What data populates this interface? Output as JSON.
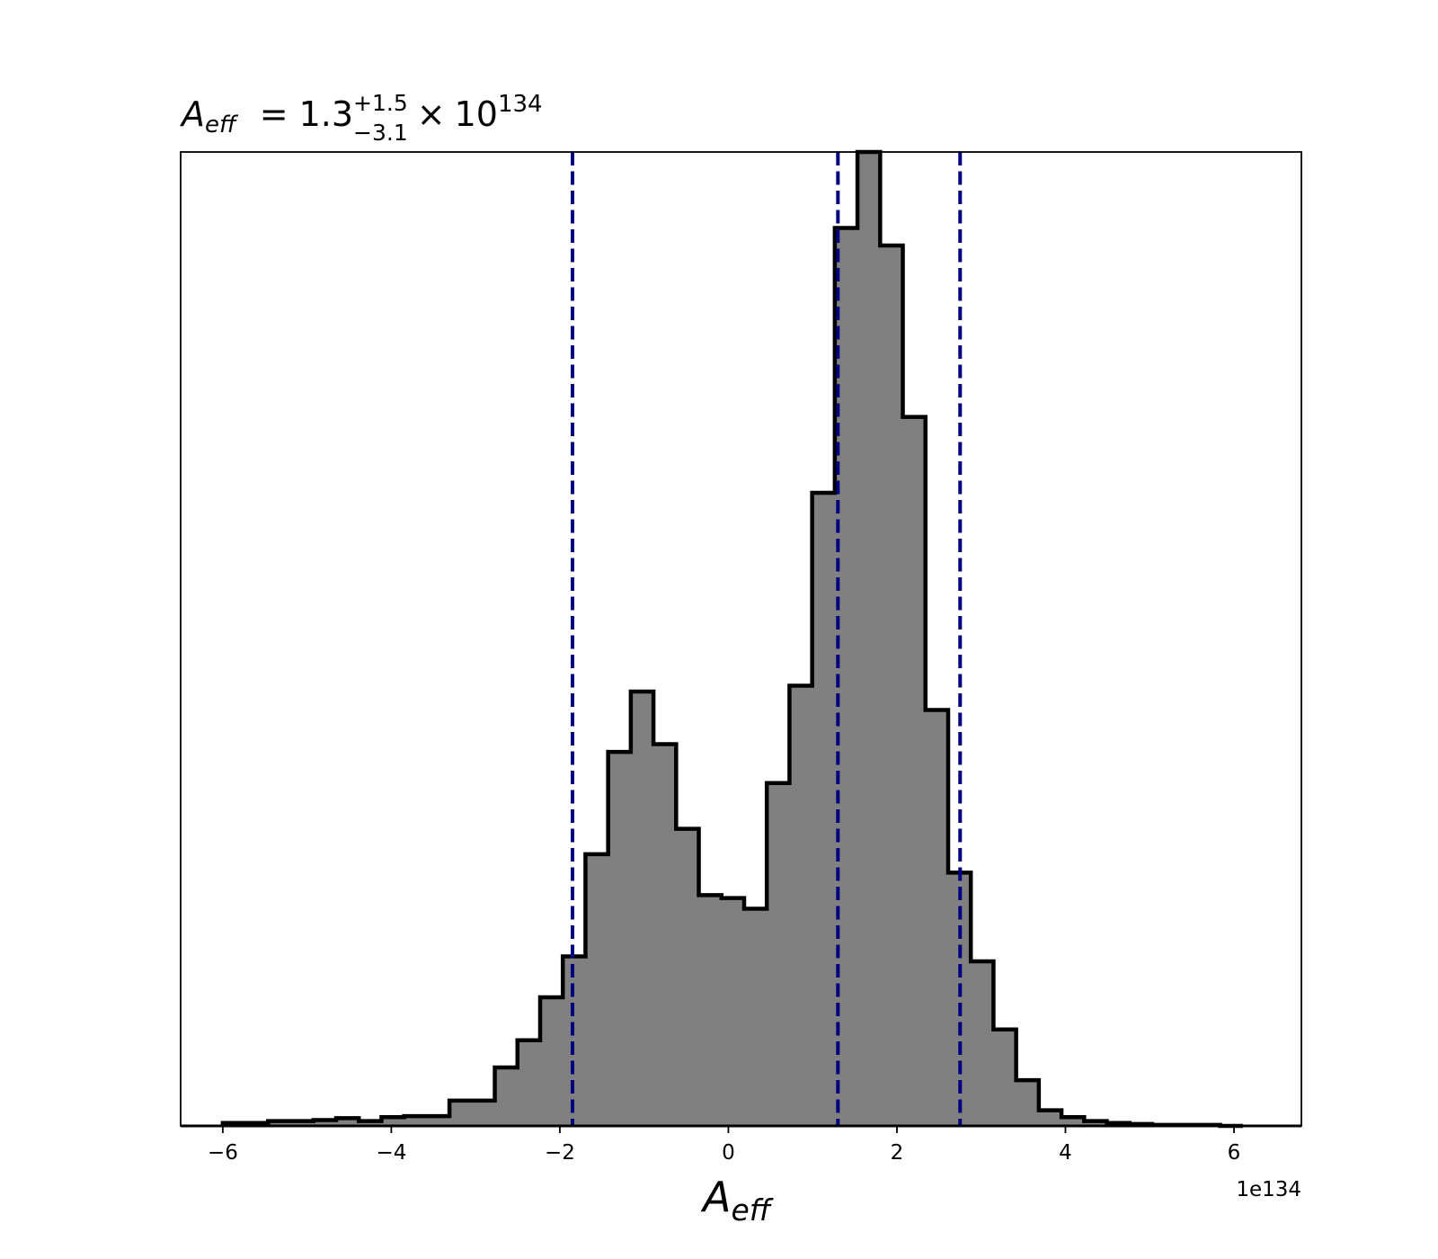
{
  "chart_data": {
    "type": "bar",
    "title": {
      "symbol": "A",
      "subscript": "eff",
      "equals": "=",
      "value": "1.3",
      "upper_error": "+1.5",
      "lower_error": "−3.1",
      "times": "×",
      "base": "10",
      "exponent": "134"
    },
    "xlabel": {
      "symbol": "A",
      "subscript": "eff"
    },
    "ylabel": "",
    "x_offset_label": "1e134",
    "xlim": [
      -6.5,
      6.8
    ],
    "ylim": [
      0,
      1.0
    ],
    "x_ticks": [
      -6,
      -4,
      -2,
      0,
      2,
      4,
      6
    ],
    "x_tick_labels": [
      "−6",
      "−4",
      "−2",
      "0",
      "2",
      "4",
      "6"
    ],
    "show_y_ticks": false,
    "grid": false,
    "bin_width": 0.269,
    "bin_lefts": [
      -6.0,
      -5.731,
      -5.462,
      -5.193,
      -4.924,
      -4.655,
      -4.386,
      -4.117,
      -3.848,
      -3.579,
      -3.31,
      -3.041,
      -2.772,
      -2.503,
      -2.234,
      -1.965,
      -1.696,
      -1.427,
      -1.158,
      -0.889,
      -0.62,
      -0.351,
      -0.082,
      0.187,
      0.456,
      0.725,
      0.994,
      1.263,
      1.532,
      1.801,
      2.07,
      2.339,
      2.608,
      2.877,
      3.146,
      3.415,
      3.684,
      3.953,
      4.222,
      4.491,
      4.76,
      5.029,
      5.298,
      5.567,
      5.836
    ],
    "values": [
      0.003,
      0.003,
      0.005,
      0.005,
      0.006,
      0.008,
      0.005,
      0.009,
      0.01,
      0.01,
      0.026,
      0.026,
      0.06,
      0.088,
      0.132,
      0.174,
      0.279,
      0.384,
      0.446,
      0.392,
      0.305,
      0.237,
      0.234,
      0.223,
      0.352,
      0.452,
      0.65,
      0.922,
      1.0,
      0.904,
      0.728,
      0.427,
      0.26,
      0.169,
      0.099,
      0.047,
      0.016,
      0.009,
      0.005,
      0.003,
      0.002,
      0.001,
      0.001,
      0.001,
      0.0
    ],
    "fill_color": "#808080",
    "edge_color": "#000000",
    "reference_lines": {
      "color": "#00007f",
      "style": "dashed",
      "x": [
        -1.85,
        1.3,
        2.75
      ]
    }
  }
}
